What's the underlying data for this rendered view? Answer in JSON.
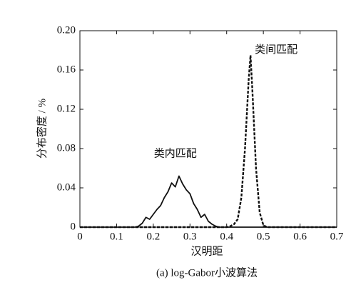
{
  "chart_data": {
    "type": "line",
    "x_label": "汉明距",
    "y_label": "分布密度 / %",
    "caption": "(a) log-Gabor小波算法",
    "xlim": [
      0,
      0.7
    ],
    "xticks": [
      0,
      0.1,
      0.2,
      0.3,
      0.4,
      0.5,
      0.6,
      0.7
    ],
    "ylim": [
      0,
      0.2
    ],
    "yticks": [
      0,
      0.04,
      0.08,
      0.12,
      0.16,
      {
        "value": 0.2,
        "label": "0.20"
      }
    ],
    "series": [
      {
        "name": "类内匹配",
        "color": "#111111",
        "dash": "solid",
        "x": [
          0,
          0.15,
          0.16,
          0.17,
          0.18,
          0.19,
          0.2,
          0.21,
          0.22,
          0.23,
          0.24,
          0.25,
          0.26,
          0.27,
          0.28,
          0.29,
          0.3,
          0.31,
          0.32,
          0.33,
          0.34,
          0.35,
          0.36,
          0.37,
          0.38,
          0.7
        ],
        "values": [
          0,
          0,
          0.001,
          0.004,
          0.01,
          0.008,
          0.013,
          0.018,
          0.022,
          0.03,
          0.036,
          0.045,
          0.041,
          0.052,
          0.044,
          0.038,
          0.034,
          0.024,
          0.018,
          0.01,
          0.013,
          0.006,
          0.003,
          0.001,
          0,
          0
        ]
      },
      {
        "name": "类间匹配",
        "color": "#111111",
        "dash": "dashed",
        "x": [
          0,
          0.4,
          0.41,
          0.42,
          0.43,
          0.44,
          0.45,
          0.46,
          0.465,
          0.47,
          0.48,
          0.49,
          0.5,
          0.51,
          0.7
        ],
        "values": [
          0,
          0,
          0.001,
          0.003,
          0.008,
          0.03,
          0.08,
          0.15,
          0.175,
          0.14,
          0.06,
          0.015,
          0.002,
          0,
          0
        ]
      }
    ]
  }
}
